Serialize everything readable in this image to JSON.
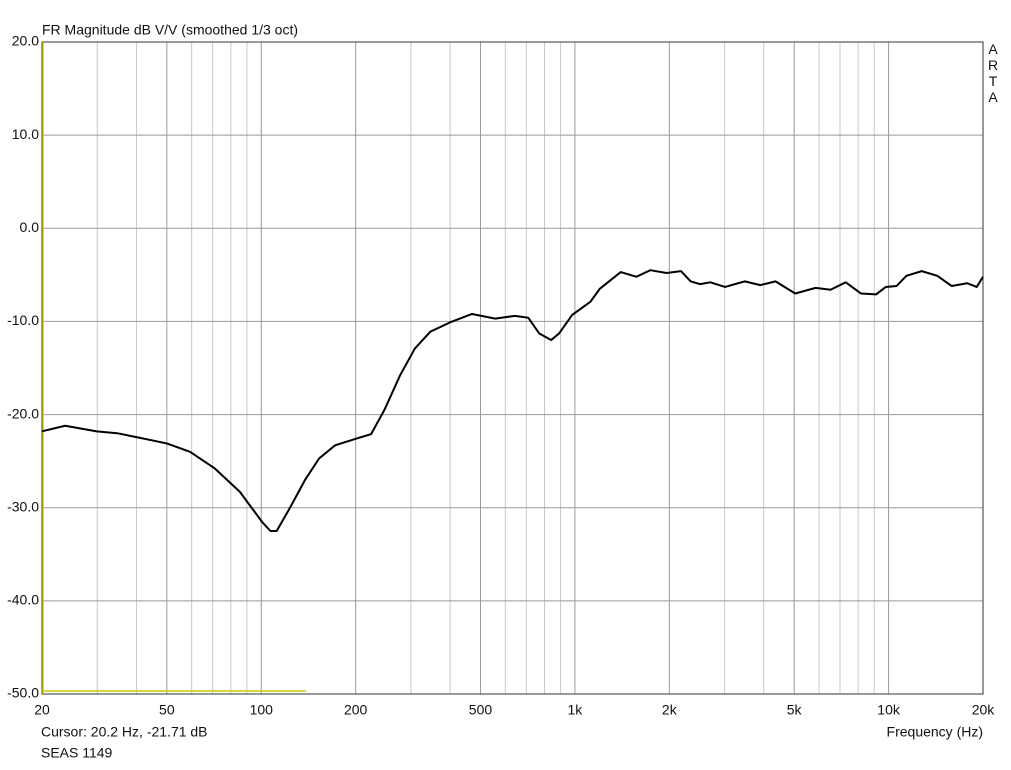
{
  "chart_data": {
    "type": "line",
    "title": "FR Magnitude dB V/V (smoothed 1/3 oct)",
    "watermark": "ARTA",
    "cursor_text": "Cursor: 20.2 Hz, -21.71 dB",
    "note": "SEAS 1149",
    "x_label": "Frequency (Hz)",
    "xscale": "log",
    "grid": true,
    "x": [
      20,
      23.7,
      29.9,
      34.7,
      41.1,
      50,
      59.3,
      71.2,
      85.5,
      101,
      107,
      112,
      124,
      138,
      153,
      172,
      200,
      224,
      247,
      277,
      309,
      346,
      400,
      470,
      557,
      644,
      710,
      770,
      840,
      890,
      980,
      1120,
      1200,
      1400,
      1570,
      1740,
      1960,
      2180,
      2340,
      2510,
      2700,
      3010,
      3480,
      3900,
      4360,
      5040,
      5850,
      6530,
      7300,
      8160,
      9120,
      9800,
      10600,
      11400,
      12750,
      14300,
      15900,
      17800,
      19100,
      20000
    ],
    "series": [
      {
        "color": "#000000",
        "values": [
          -21.8,
          -21.2,
          -21.8,
          -22.0,
          -22.5,
          -23.1,
          -24.0,
          -25.8,
          -28.3,
          -31.6,
          -32.5,
          -32.5,
          -29.9,
          -27.0,
          -24.7,
          -23.3,
          -22.6,
          -22.1,
          -19.5,
          -15.8,
          -12.9,
          -11.1,
          -10.1,
          -9.2,
          -9.7,
          -9.4,
          -9.6,
          -11.3,
          -12.0,
          -11.3,
          -9.3,
          -7.9,
          -6.5,
          -4.7,
          -5.2,
          -4.5,
          -4.8,
          -4.6,
          -5.7,
          -6.0,
          -5.8,
          -6.3,
          -5.7,
          -6.1,
          -5.7,
          -7.0,
          -6.4,
          -6.6,
          -5.8,
          -7.0,
          -7.1,
          -6.3,
          -6.2,
          -5.1,
          -4.6,
          -5.1,
          -6.2,
          -5.9,
          -6.3,
          -5.2
        ]
      }
    ],
    "xlim": [
      20,
      20000
    ],
    "ylim": [
      -50,
      20
    ],
    "xticks": [
      20,
      50,
      100,
      200,
      500,
      {
        "value": 1000,
        "label": "1k"
      },
      {
        "value": 2000,
        "label": "2k"
      },
      {
        "value": 5000,
        "label": "5k"
      },
      {
        "value": 10000,
        "label": "10k"
      },
      {
        "value": 20000,
        "label": "20k"
      }
    ],
    "xgrid_minor": [
      30,
      40,
      60,
      70,
      80,
      90,
      300,
      400,
      600,
      700,
      800,
      900,
      3000,
      4000,
      6000,
      7000,
      8000,
      9000
    ],
    "yticks": [
      {
        "value": 20,
        "label": "20.0"
      },
      {
        "value": 10,
        "label": "10.0"
      },
      {
        "value": 0,
        "label": "0.0"
      },
      {
        "value": -10,
        "label": "-10.0"
      },
      {
        "value": -20,
        "label": "-20.0"
      },
      {
        "value": -30,
        "label": "-30.0"
      },
      {
        "value": -40,
        "label": "-40.0"
      },
      {
        "value": -50,
        "label": "-50.0"
      }
    ]
  }
}
